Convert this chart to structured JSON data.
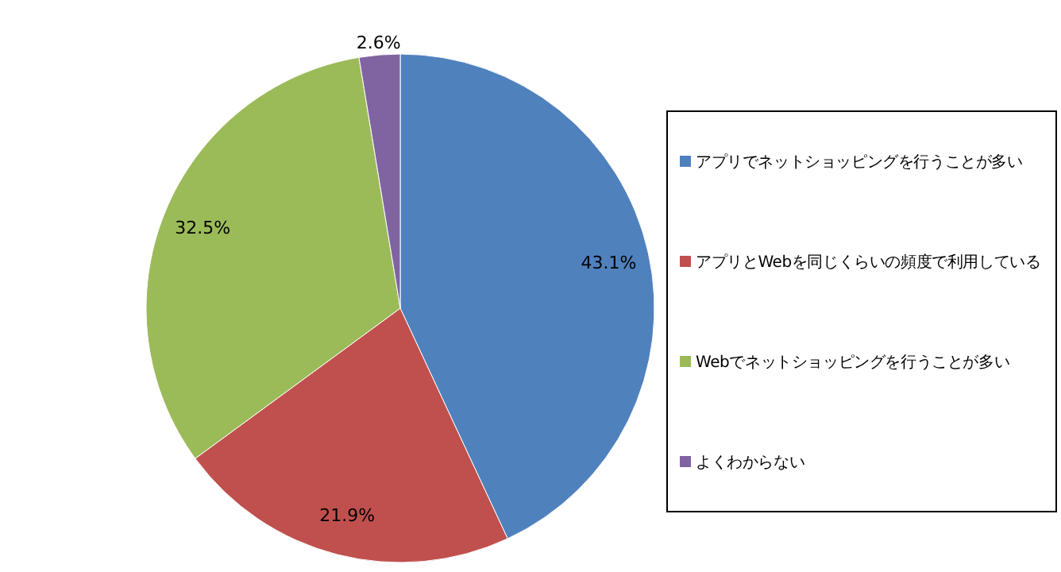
{
  "chart_data": {
    "type": "pie",
    "categories": [
      "アプリでネットショッピングを行うことが多い",
      "アプリとWebを同じくらいの頻度で利用している",
      "Webでネットショッピングを行うことが多い",
      "よくわからない"
    ],
    "values": [
      43.1,
      21.9,
      32.5,
      2.6
    ],
    "colors": [
      "#4f81bd",
      "#c0504d",
      "#9bbb59",
      "#8064a2"
    ],
    "value_labels": [
      "43.1%",
      "21.9%",
      "32.5%",
      "2.6%"
    ],
    "legend": "right"
  }
}
